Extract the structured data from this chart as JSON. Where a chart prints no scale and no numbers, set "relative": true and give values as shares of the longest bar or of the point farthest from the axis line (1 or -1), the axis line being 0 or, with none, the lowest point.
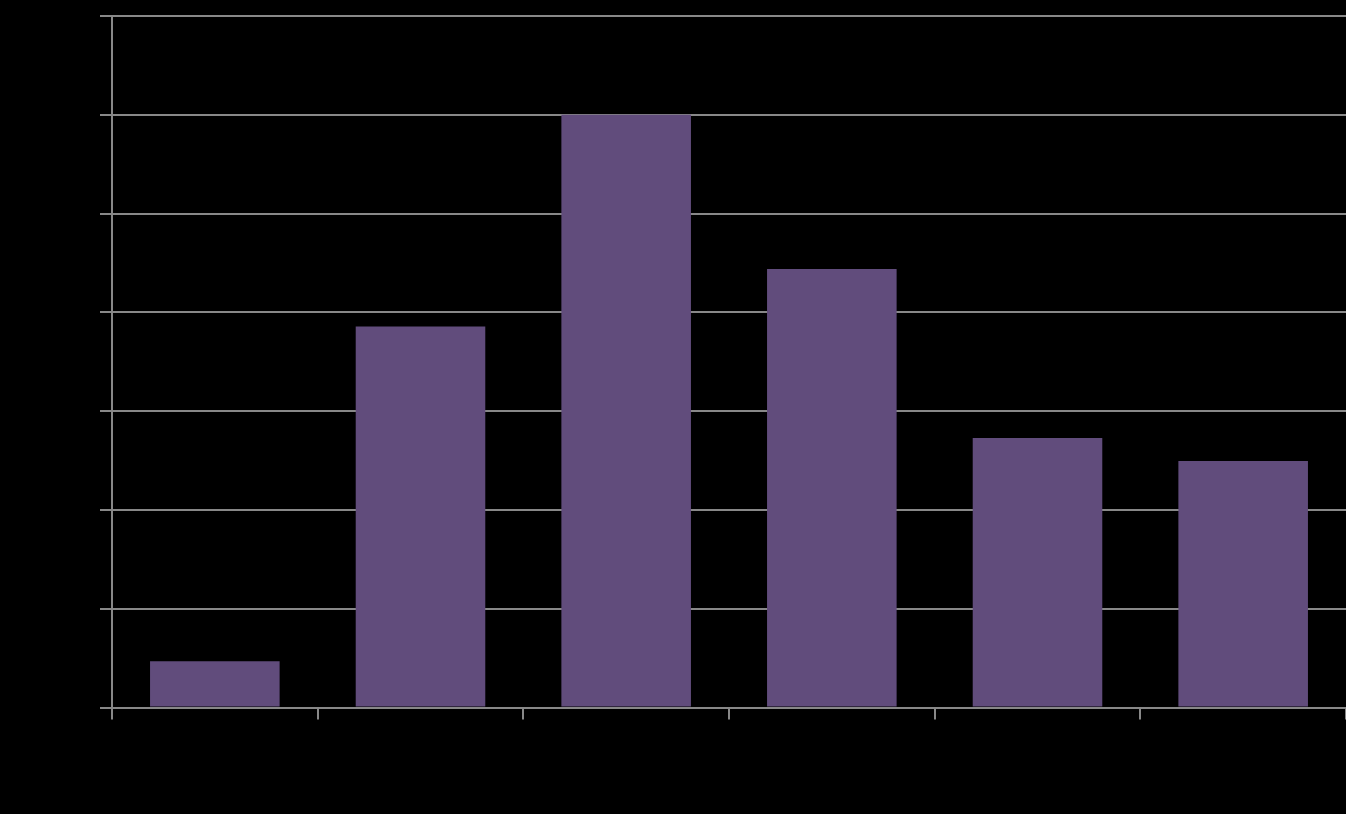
{
  "chart_data": {
    "type": "bar",
    "relative": true,
    "categories": [
      null,
      null,
      null,
      null,
      null,
      null
    ],
    "values": [
      0.078,
      0.643,
      1,
      0.74,
      0.455,
      0.416
    ],
    "color": "#614c7c",
    "grid": "y"
  }
}
